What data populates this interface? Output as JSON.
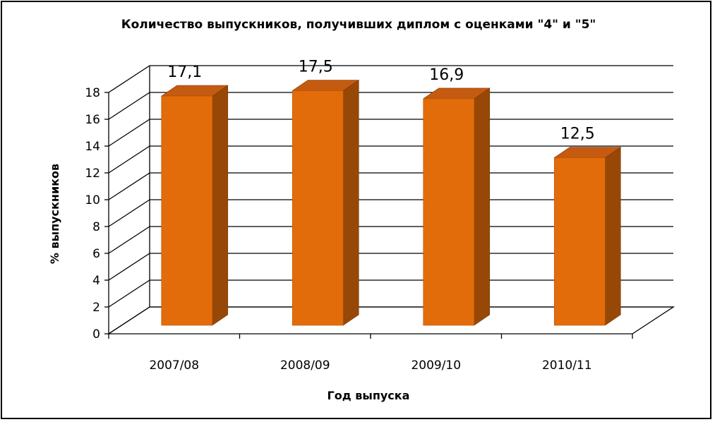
{
  "chart_data": {
    "type": "bar",
    "title": "Количество выпускников, получивших диплом с оценками \"4\" и \"5\"",
    "xlabel": "Год выпуска",
    "ylabel": "% выпускников",
    "categories": [
      "2007/08",
      "2008/09",
      "2009/10",
      "2010/11"
    ],
    "values": [
      17.1,
      17.5,
      16.9,
      12.5
    ],
    "data_labels": [
      "17,1",
      "17,5",
      "16,9",
      "12,5"
    ],
    "yticks": [
      "0",
      "2",
      "4",
      "6",
      "8",
      "10",
      "12",
      "14",
      "16",
      "18"
    ],
    "ylim": [
      0,
      18
    ],
    "grid": true,
    "legend": "none",
    "style": "3d-column",
    "colors": {
      "bar_front": "#E36C0A",
      "bar_side": "#974806",
      "bar_top": "#C55A11",
      "grid": "#000000"
    }
  }
}
